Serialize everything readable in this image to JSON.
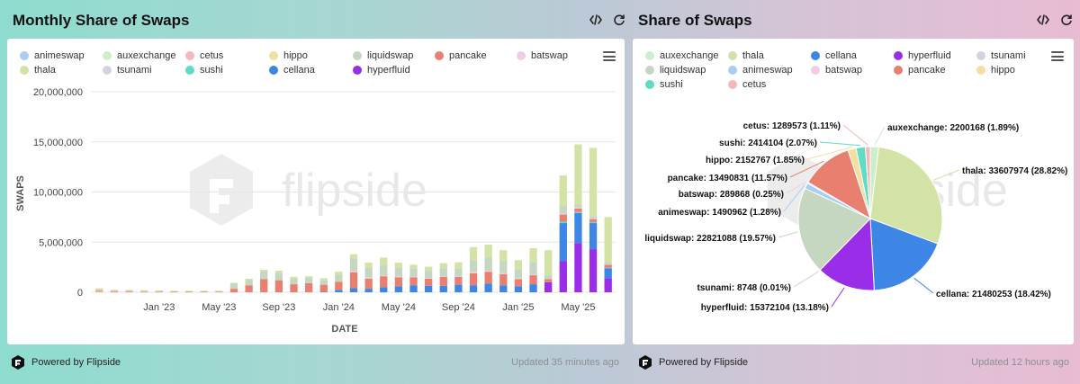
{
  "left": {
    "title": "Monthly Share of Swaps",
    "footer": "Powered by Flipside",
    "updated": "Updated 35 minutes ago",
    "watermark": "flipside",
    "icons": [
      "code-icon",
      "refresh-icon",
      "menu-icon"
    ]
  },
  "right": {
    "title": "Share of Swaps",
    "footer": "Powered by Flipside",
    "updated": "Updated 12 hours ago",
    "watermark": "flipside",
    "icons": [
      "code-icon",
      "refresh-icon",
      "menu-icon"
    ]
  },
  "colors": {
    "animeswap": "#a9cdf3",
    "auxexchange": "#cdeecb",
    "cetus": "#f4b8b8",
    "hippo": "#f3dfa0",
    "liquidswap": "#c5d6c1",
    "pancake": "#e9806f",
    "batswap": "#f2cce4",
    "thala": "#d3e2a5",
    "tsunami": "#d3d3e0",
    "sushi": "#5fdcc4",
    "cellana": "#3e86e6",
    "hyperfluid": "#9a2ee8"
  },
  "chart_data": [
    {
      "type": "bar",
      "stacked": true,
      "title": "Monthly Share of Swaps",
      "xlabel": "DATE",
      "ylabel": "SWAPS",
      "ylim": [
        0,
        20000000
      ],
      "yticks": [
        "0",
        "5,000,000",
        "10,000,000",
        "15,000,000",
        "20,000,000"
      ],
      "xticks": [
        "Jan '23",
        "May '23",
        "Sep '23",
        "Jan '24",
        "May '24",
        "Sep '24",
        "Jan '25",
        "May '25"
      ],
      "legend": [
        "animeswap",
        "auxexchange",
        "cetus",
        "hippo",
        "liquidswap",
        "pancake",
        "batswap",
        "thala",
        "tsunami",
        "sushi",
        "cellana",
        "hyperfluid"
      ],
      "categories": [
        "Sep '22",
        "Oct '22",
        "Nov '22",
        "Dec '22",
        "Jan '23",
        "Feb '23",
        "Mar '23",
        "Apr '23",
        "May '23",
        "Jun '23",
        "Jul '23",
        "Aug '23",
        "Sep '23",
        "Oct '23",
        "Nov '23",
        "Dec '23",
        "Jan '24",
        "Feb '24",
        "Mar '24",
        "Apr '24",
        "May '24",
        "Jun '24",
        "Jul '24",
        "Aug '24",
        "Sep '24",
        "Oct '24",
        "Nov '24",
        "Dec '24",
        "Jan '25",
        "Feb '25",
        "Mar '25",
        "Apr '25",
        "May '25",
        "Jun '25",
        "Jul '25"
      ],
      "series": [
        {
          "name": "hyperfluid",
          "values": [
            0,
            0,
            0,
            0,
            0,
            0,
            0,
            0,
            0,
            0,
            0,
            0,
            0,
            0,
            0,
            0,
            0,
            0,
            0,
            0,
            0,
            0,
            0,
            0,
            0,
            0,
            0,
            0,
            0,
            0,
            1000000,
            3100000,
            4900000,
            4300000,
            1400000
          ]
        },
        {
          "name": "cellana",
          "values": [
            0,
            0,
            0,
            0,
            0,
            0,
            0,
            0,
            0,
            0,
            0,
            0,
            0,
            0,
            0,
            50000,
            250000,
            400000,
            350000,
            500000,
            600000,
            700000,
            650000,
            650000,
            750000,
            700000,
            850000,
            700000,
            600000,
            800000,
            0,
            3800000,
            3000000,
            2600000,
            1000000
          ]
        },
        {
          "name": "sushi",
          "values": [
            0,
            0,
            0,
            0,
            0,
            0,
            0,
            0,
            0,
            0,
            0,
            0,
            0,
            0,
            0,
            0,
            0,
            0,
            0,
            0,
            0,
            0,
            0,
            0,
            0,
            0,
            0,
            0,
            0,
            0,
            0,
            150000,
            100000,
            100000,
            50000
          ]
        },
        {
          "name": "hippo",
          "values": [
            50000,
            20000,
            20000,
            20000,
            10000,
            10000,
            10000,
            10000,
            10000,
            0,
            0,
            0,
            0,
            0,
            0,
            0,
            0,
            0,
            0,
            0,
            0,
            0,
            0,
            0,
            0,
            0,
            0,
            0,
            0,
            0,
            0,
            0,
            0,
            0,
            0
          ]
        },
        {
          "name": "pancake",
          "values": [
            100000,
            80000,
            80000,
            60000,
            60000,
            40000,
            40000,
            40000,
            40000,
            350000,
            700000,
            1300000,
            1200000,
            800000,
            900000,
            700000,
            800000,
            1600000,
            1000000,
            1100000,
            900000,
            800000,
            700000,
            900000,
            800000,
            1200000,
            1200000,
            1100000,
            700000,
            900000,
            300000,
            700000,
            350000,
            300000,
            300000
          ]
        },
        {
          "name": "batswap",
          "values": [
            0,
            0,
            0,
            0,
            0,
            0,
            0,
            0,
            0,
            0,
            0,
            0,
            0,
            0,
            0,
            0,
            0,
            100000,
            100000,
            50000,
            50000,
            50000,
            50000,
            50000,
            50000,
            100000,
            100000,
            100000,
            100000,
            100000,
            0,
            100000,
            100000,
            100000,
            50000
          ]
        },
        {
          "name": "liquidswap",
          "values": [
            150000,
            100000,
            80000,
            70000,
            60000,
            60000,
            60000,
            60000,
            70000,
            500000,
            550000,
            800000,
            750000,
            550000,
            550000,
            450000,
            700000,
            1300000,
            1000000,
            1100000,
            900000,
            800000,
            750000,
            800000,
            800000,
            1200000,
            1300000,
            1200000,
            900000,
            1200000,
            400000,
            800000,
            300000,
            200000,
            200000
          ]
        },
        {
          "name": "tsunami",
          "values": [
            0,
            0,
            0,
            0,
            0,
            0,
            0,
            0,
            0,
            0,
            0,
            0,
            0,
            0,
            0,
            0,
            0,
            0,
            0,
            0,
            0,
            0,
            0,
            0,
            0,
            0,
            0,
            0,
            0,
            0,
            0,
            0,
            0,
            0,
            0
          ]
        },
        {
          "name": "thala",
          "values": [
            100000,
            60000,
            60000,
            60000,
            50000,
            40000,
            40000,
            40000,
            40000,
            100000,
            100000,
            150000,
            200000,
            200000,
            150000,
            200000,
            300000,
            400000,
            500000,
            700000,
            500000,
            400000,
            400000,
            500000,
            600000,
            1300000,
            1300000,
            1100000,
            900000,
            1400000,
            2500000,
            3000000,
            6000000,
            6800000,
            4500000
          ]
        },
        {
          "name": "auxexchange",
          "values": [
            0,
            0,
            0,
            0,
            0,
            0,
            0,
            0,
            0,
            0,
            0,
            0,
            0,
            0,
            0,
            0,
            0,
            0,
            0,
            0,
            0,
            0,
            0,
            0,
            0,
            0,
            0,
            0,
            0,
            0,
            0,
            0,
            0,
            0,
            0
          ]
        },
        {
          "name": "cetus",
          "values": [
            0,
            0,
            0,
            0,
            0,
            0,
            0,
            0,
            0,
            0,
            0,
            0,
            0,
            0,
            0,
            0,
            0,
            0,
            0,
            0,
            0,
            0,
            0,
            0,
            0,
            0,
            0,
            0,
            0,
            0,
            0,
            0,
            0,
            0,
            0
          ]
        },
        {
          "name": "animeswap",
          "values": [
            0,
            0,
            0,
            0,
            0,
            0,
            0,
            0,
            0,
            0,
            0,
            0,
            0,
            0,
            0,
            0,
            0,
            0,
            0,
            0,
            0,
            0,
            0,
            0,
            0,
            0,
            0,
            0,
            0,
            0,
            0,
            0,
            0,
            0,
            0
          ]
        }
      ]
    },
    {
      "type": "pie",
      "title": "Share of Swaps",
      "legend": [
        "auxexchange",
        "thala",
        "cellana",
        "hyperfluid",
        "tsunami",
        "liquidswap",
        "animeswap",
        "batswap",
        "pancake",
        "hippo",
        "sushi",
        "cetus"
      ],
      "slices": [
        {
          "name": "auxexchange",
          "value": 2200168,
          "label": "auxexchange: 2200168 (1.89%)"
        },
        {
          "name": "thala",
          "value": 33607974,
          "label": "thala: 33607974 (28.82%)"
        },
        {
          "name": "cellana",
          "value": 21480253,
          "label": "cellana: 21480253 (18.42%)"
        },
        {
          "name": "hyperfluid",
          "value": 15372104,
          "label": "hyperfluid: 15372104 (13.18%)"
        },
        {
          "name": "tsunami",
          "value": 8748,
          "label": "tsunami: 8748 (0.01%)"
        },
        {
          "name": "liquidswap",
          "value": 22821088,
          "label": "liquidswap: 22821088 (19.57%)"
        },
        {
          "name": "animeswap",
          "value": 1490962,
          "label": "animeswap: 1490962 (1.28%)"
        },
        {
          "name": "batswap",
          "value": 289868,
          "label": "batswap: 289868 (0.25%)"
        },
        {
          "name": "pancake",
          "value": 13490831,
          "label": "pancake: 13490831 (11.57%)"
        },
        {
          "name": "hippo",
          "value": 2152767,
          "label": "hippo: 2152767 (1.85%)"
        },
        {
          "name": "sushi",
          "value": 2414104,
          "label": "sushi: 2414104 (2.07%)"
        },
        {
          "name": "cetus",
          "value": 1289573,
          "label": "cetus: 1289573 (1.11%)"
        }
      ]
    }
  ]
}
